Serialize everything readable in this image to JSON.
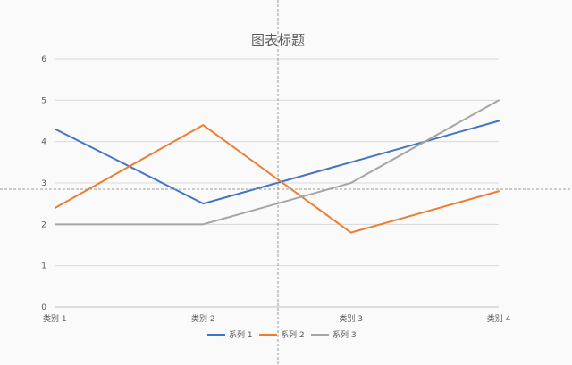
{
  "chart_data": {
    "type": "line",
    "title": "图表标题",
    "categories": [
      "类别 1",
      "类别 2",
      "类别 3",
      "类别 4"
    ],
    "ylim": [
      0,
      6
    ],
    "yticks": [
      0,
      1,
      2,
      3,
      4,
      5,
      6
    ],
    "grid": true,
    "legend_position": "bottom",
    "series": [
      {
        "name": "系列 1",
        "values": [
          4.3,
          2.5,
          3.5,
          4.5
        ],
        "color": "#4472C4"
      },
      {
        "name": "系列 2",
        "values": [
          2.4,
          4.4,
          1.8,
          2.8
        ],
        "color": "#ED7D31"
      },
      {
        "name": "系列 3",
        "values": [
          2.0,
          2.0,
          3.0,
          5.0
        ],
        "color": "#A5A5A5"
      }
    ]
  }
}
